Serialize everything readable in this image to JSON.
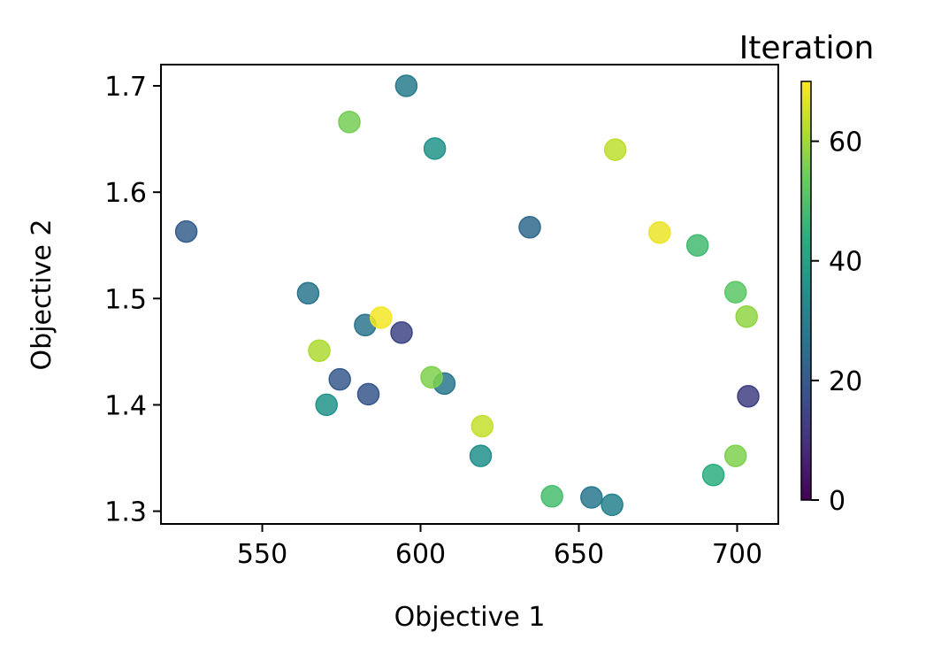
{
  "chart_data": {
    "type": "scatter",
    "title": "",
    "xlabel": "Objective 1",
    "ylabel": "Objective 2",
    "xlim": [
      518,
      713
    ],
    "ylim": [
      1.288,
      1.72
    ],
    "xticks": [
      550,
      600,
      650,
      700
    ],
    "yticks": [
      1.3,
      1.4,
      1.5,
      1.6,
      1.7
    ],
    "xtick_labels": [
      "550",
      "600",
      "650",
      "700"
    ],
    "ytick_labels": [
      "1.3",
      "1.4",
      "1.5",
      "1.6",
      "1.7"
    ],
    "grid": false,
    "colorbar": {
      "title": "Iteration",
      "colormap": "viridis",
      "range": [
        0,
        70
      ],
      "ticks": [
        0,
        20,
        40,
        60
      ],
      "tick_labels": [
        "0",
        "20",
        "40",
        "60"
      ]
    },
    "points": [
      {
        "x": 526.0,
        "y": 1.563,
        "iteration": 21
      },
      {
        "x": 564.5,
        "y": 1.505,
        "iteration": 27
      },
      {
        "x": 568.0,
        "y": 1.451,
        "iteration": 61
      },
      {
        "x": 570.3,
        "y": 1.4,
        "iteration": 36
      },
      {
        "x": 574.5,
        "y": 1.424,
        "iteration": 20
      },
      {
        "x": 577.5,
        "y": 1.666,
        "iteration": 55
      },
      {
        "x": 582.5,
        "y": 1.475,
        "iteration": 27
      },
      {
        "x": 583.5,
        "y": 1.41,
        "iteration": 19
      },
      {
        "x": 587.5,
        "y": 1.482,
        "iteration": 69
      },
      {
        "x": 594.0,
        "y": 1.468,
        "iteration": 15
      },
      {
        "x": 595.5,
        "y": 1.7,
        "iteration": 29
      },
      {
        "x": 603.5,
        "y": 1.426,
        "iteration": 56
      },
      {
        "x": 604.5,
        "y": 1.641,
        "iteration": 36
      },
      {
        "x": 607.5,
        "y": 1.42,
        "iteration": 28
      },
      {
        "x": 619.0,
        "y": 1.352,
        "iteration": 35
      },
      {
        "x": 619.5,
        "y": 1.38,
        "iteration": 64
      },
      {
        "x": 634.5,
        "y": 1.567,
        "iteration": 24
      },
      {
        "x": 641.5,
        "y": 1.314,
        "iteration": 49
      },
      {
        "x": 654.0,
        "y": 1.313,
        "iteration": 28
      },
      {
        "x": 660.5,
        "y": 1.306,
        "iteration": 31
      },
      {
        "x": 661.5,
        "y": 1.64,
        "iteration": 63
      },
      {
        "x": 675.5,
        "y": 1.562,
        "iteration": 68
      },
      {
        "x": 687.5,
        "y": 1.55,
        "iteration": 48
      },
      {
        "x": 692.5,
        "y": 1.334,
        "iteration": 44
      },
      {
        "x": 699.5,
        "y": 1.506,
        "iteration": 52
      },
      {
        "x": 699.5,
        "y": 1.352,
        "iteration": 56
      },
      {
        "x": 703.0,
        "y": 1.483,
        "iteration": 58
      },
      {
        "x": 703.5,
        "y": 1.408,
        "iteration": 13
      }
    ]
  }
}
